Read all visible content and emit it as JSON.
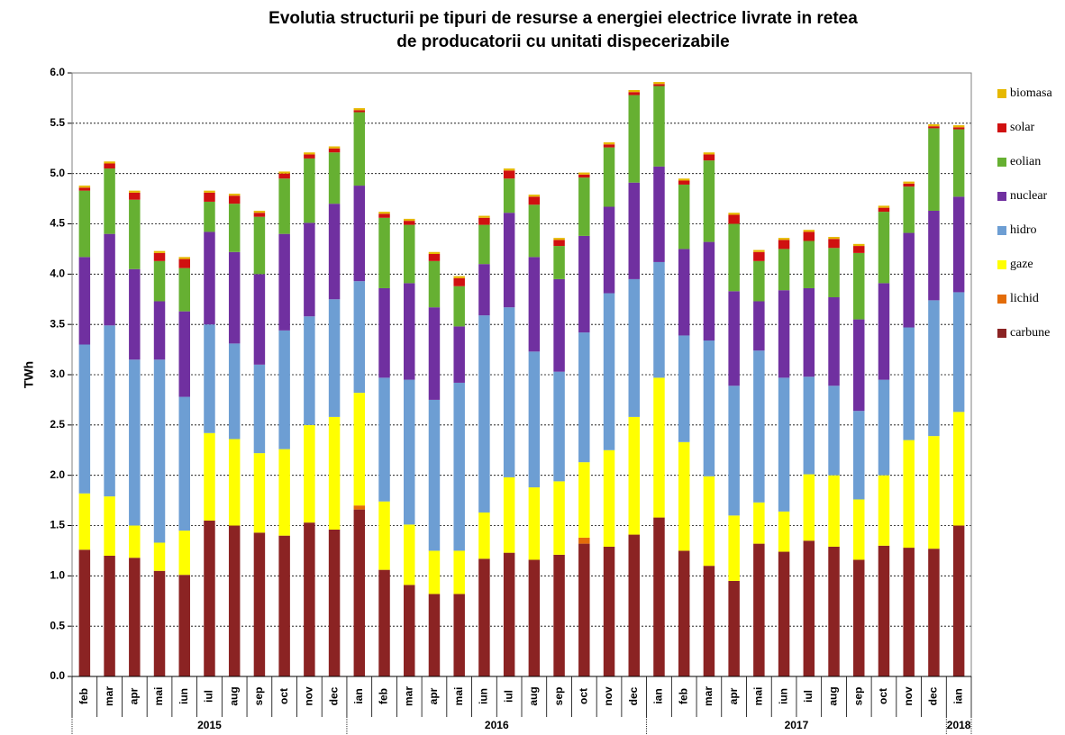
{
  "chart_data": {
    "type": "bar",
    "stacked": true,
    "title": [
      "Evolutia structurii pe tipuri de resurse a energiei electrice livrate in retea",
      "de producatorii cu unitati dispecerizabile"
    ],
    "ylabel": "TWh",
    "categories": [
      "feb",
      "mar",
      "apr",
      "mai",
      "iun",
      "iul",
      "aug",
      "sep",
      "oct",
      "nov",
      "dec",
      "ian",
      "feb",
      "mar",
      "apr",
      "mai",
      "iun",
      "iul",
      "aug",
      "sep",
      "oct",
      "nov",
      "dec",
      "ian",
      "feb",
      "mar",
      "apr",
      "mai",
      "iun",
      "iul",
      "aug",
      "sep",
      "oct",
      "nov",
      "dec",
      "ian"
    ],
    "groups": [
      {
        "name": "2015",
        "count": 11
      },
      {
        "name": "2016",
        "count": 12
      },
      {
        "name": "2017",
        "count": 12
      },
      {
        "name": "2018",
        "count": 1
      }
    ],
    "ylim": [
      0,
      6
    ],
    "yticks": [
      {
        "value": 0,
        "label": "0.0"
      },
      0.5,
      {
        "value": 1,
        "label": "1.0"
      },
      1.5,
      {
        "value": 2,
        "label": "2.0"
      },
      2.5,
      {
        "value": 3,
        "label": "3.0"
      },
      3.5,
      {
        "value": 4,
        "label": "4.0"
      },
      4.5,
      {
        "value": 5,
        "label": "5.0"
      },
      5.5,
      {
        "value": 6,
        "label": "6.0"
      }
    ],
    "grid": true,
    "legend": "right",
    "series": [
      {
        "name": "carbune",
        "color": "#8b2323",
        "values": [
          1.26,
          1.2,
          1.18,
          1.05,
          1.01,
          1.55,
          1.5,
          1.43,
          1.4,
          1.53,
          1.46,
          1.66,
          1.06,
          0.91,
          0.82,
          0.82,
          1.17,
          1.23,
          1.16,
          1.21,
          1.32,
          1.29,
          1.41,
          1.58,
          1.25,
          1.1,
          0.95,
          1.32,
          1.24,
          1.35,
          1.29,
          1.16,
          1.3,
          1.28,
          1.27,
          1.5
        ]
      },
      {
        "name": "lichid",
        "color": "#e36c09",
        "values": [
          0,
          0,
          0,
          0,
          0,
          0,
          0,
          0,
          0,
          0,
          0,
          0.04,
          0,
          0,
          0,
          0,
          0,
          0,
          0,
          0,
          0.06,
          0,
          0,
          0,
          0,
          0,
          0,
          0,
          0,
          0,
          0,
          0,
          0,
          0,
          0,
          0
        ]
      },
      {
        "name": "gaze",
        "color": "#ffff00",
        "values": [
          0.56,
          0.59,
          0.32,
          0.28,
          0.44,
          0.87,
          0.86,
          0.79,
          0.86,
          0.97,
          1.12,
          1.12,
          0.68,
          0.6,
          0.43,
          0.43,
          0.46,
          0.75,
          0.72,
          0.73,
          0.75,
          0.96,
          1.17,
          1.39,
          1.08,
          0.89,
          0.65,
          0.41,
          0.4,
          0.66,
          0.71,
          0.6,
          0.7,
          1.07,
          1.12,
          1.13
        ]
      },
      {
        "name": "hidro",
        "color": "#6d9ed3",
        "values": [
          1.48,
          1.7,
          1.65,
          1.82,
          1.33,
          1.08,
          0.95,
          0.88,
          1.18,
          1.08,
          1.17,
          1.11,
          1.23,
          1.44,
          1.5,
          1.67,
          1.96,
          1.69,
          1.35,
          1.09,
          1.29,
          1.56,
          1.37,
          1.15,
          1.06,
          1.35,
          1.29,
          1.51,
          1.33,
          0.97,
          0.89,
          0.88,
          0.95,
          1.12,
          1.35,
          1.19
        ]
      },
      {
        "name": "nuclear",
        "color": "#7030a0",
        "values": [
          0.87,
          0.91,
          0.9,
          0.58,
          0.85,
          0.92,
          0.91,
          0.9,
          0.96,
          0.93,
          0.95,
          0.95,
          0.89,
          0.96,
          0.92,
          0.56,
          0.51,
          0.94,
          0.94,
          0.92,
          0.96,
          0.86,
          0.96,
          0.95,
          0.86,
          0.98,
          0.94,
          0.49,
          0.87,
          0.88,
          0.88,
          0.91,
          0.96,
          0.94,
          0.89,
          0.95
        ]
      },
      {
        "name": "eolian",
        "color": "#66b032",
        "values": [
          0.66,
          0.65,
          0.69,
          0.4,
          0.43,
          0.3,
          0.48,
          0.57,
          0.55,
          0.64,
          0.51,
          0.73,
          0.7,
          0.58,
          0.46,
          0.4,
          0.39,
          0.34,
          0.52,
          0.33,
          0.58,
          0.59,
          0.87,
          0.8,
          0.64,
          0.81,
          0.67,
          0.4,
          0.41,
          0.47,
          0.49,
          0.66,
          0.71,
          0.46,
          0.82,
          0.67
        ]
      },
      {
        "name": "solar",
        "color": "#d01010",
        "values": [
          0.03,
          0.05,
          0.07,
          0.08,
          0.09,
          0.09,
          0.08,
          0.04,
          0.05,
          0.04,
          0.04,
          0.02,
          0.04,
          0.04,
          0.07,
          0.08,
          0.07,
          0.08,
          0.08,
          0.06,
          0.03,
          0.03,
          0.03,
          0.02,
          0.04,
          0.06,
          0.09,
          0.09,
          0.09,
          0.09,
          0.09,
          0.07,
          0.04,
          0.03,
          0.02,
          0.02
        ]
      },
      {
        "name": "biomasa",
        "color": "#e6b800",
        "values": [
          0.02,
          0.02,
          0.02,
          0.02,
          0.02,
          0.02,
          0.02,
          0.02,
          0.02,
          0.02,
          0.02,
          0.02,
          0.02,
          0.02,
          0.02,
          0.02,
          0.02,
          0.02,
          0.02,
          0.02,
          0.02,
          0.02,
          0.02,
          0.02,
          0.02,
          0.02,
          0.02,
          0.02,
          0.02,
          0.02,
          0.02,
          0.02,
          0.02,
          0.02,
          0.02,
          0.02
        ]
      }
    ]
  }
}
